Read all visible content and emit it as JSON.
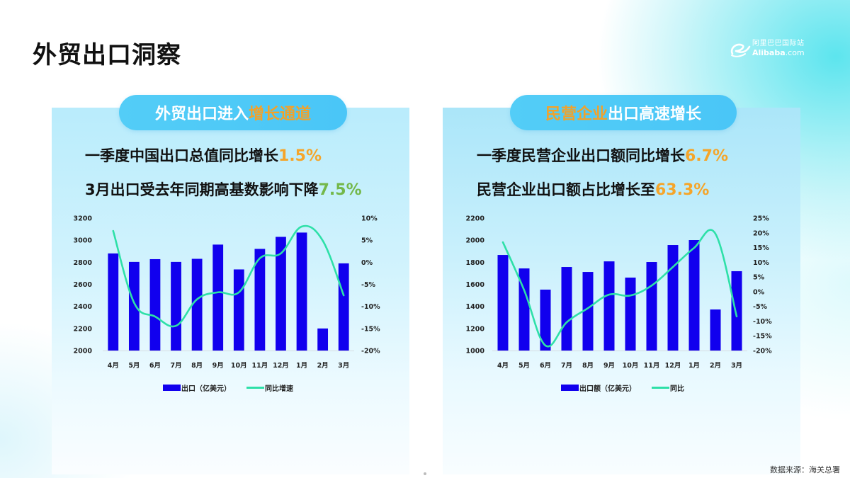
{
  "page": {
    "title": "外贸出口洞察",
    "logo": {
      "cn": "阿里巴巴国际站",
      "en_bold": "Alibaba",
      "en_suffix": ".com"
    },
    "source": "数据来源：海关总署"
  },
  "panels": [
    {
      "pill": {
        "text_plain": "外贸出口进入",
        "text_highlight": "增长通道",
        "highlight_position": "end"
      },
      "stats": [
        {
          "text": "一季度中国出口总值同比增长",
          "value": "1.5%",
          "value_color": "#f5a52a"
        },
        {
          "text": "3月出口受去年同期高基数影响下降",
          "value": "7.5%",
          "value_color": "#74b84a"
        }
      ],
      "legend": {
        "bar": "出口（亿美元）",
        "line": "同比增速"
      }
    },
    {
      "pill": {
        "text_highlight": "民营企业",
        "text_plain": "出口高速增长",
        "highlight_position": "start"
      },
      "stats": [
        {
          "text": "一季度民营企业出口额同比增长",
          "value": "6.7%",
          "value_color": "#f5a52a"
        },
        {
          "text": "民营企业出口额占比增长至",
          "value": "63.3%",
          "value_color": "#f5a52a"
        }
      ],
      "legend": {
        "bar": "出口额（亿美元）",
        "line": "同比"
      }
    }
  ],
  "colors": {
    "bar": "#1100ee",
    "line": "#2ee0a8",
    "pill": "#4ec9f7",
    "highlight": "#f2a22a"
  },
  "chart_data": [
    {
      "type": "bar+line",
      "title": "外贸出口进入增长通道",
      "categories": [
        "4月",
        "5月",
        "6月",
        "7月",
        "8月",
        "9月",
        "10月",
        "11月",
        "12月",
        "1月",
        "2月",
        "3月"
      ],
      "series": [
        {
          "name": "出口（亿美元）",
          "type": "bar",
          "axis": "left",
          "values": [
            2880,
            2803,
            2828,
            2803,
            2831,
            2960,
            2735,
            2921,
            3030,
            3069,
            2200,
            2790
          ]
        },
        {
          "name": "同比增速",
          "type": "line",
          "axis": "right",
          "unit": "%",
          "values": [
            7.1,
            -9.2,
            -12.3,
            -14.4,
            -8.4,
            -6.8,
            -6.8,
            0.9,
            2.0,
            8.1,
            4.9,
            -7.5
          ]
        }
      ],
      "y_left": {
        "min": 2000,
        "max": 3200,
        "ticks": [
          "2000",
          "2200",
          "2400",
          "2600",
          "2800",
          "3000",
          "3200"
        ]
      },
      "y_right": {
        "min": -20,
        "max": 10,
        "ticks": [
          "-20%",
          "-15%",
          "-10%",
          "-5%",
          "0%",
          "5%",
          "10%"
        ]
      },
      "grid": false,
      "legend_position": "bottom"
    },
    {
      "type": "bar+line",
      "title": "民营企业出口高速增长",
      "categories": [
        "4月",
        "5月",
        "6月",
        "7月",
        "8月",
        "9月",
        "10月",
        "11月",
        "12月",
        "1月",
        "2月",
        "3月"
      ],
      "series": [
        {
          "name": "出口额（亿美元）",
          "type": "bar",
          "axis": "left",
          "values": [
            1866,
            1744,
            1552,
            1757,
            1712,
            1808,
            1661,
            1802,
            1956,
            2001,
            1372,
            1719
          ]
        },
        {
          "name": "同比",
          "type": "line",
          "axis": "right",
          "unit": "%",
          "values": [
            16.8,
            0.5,
            -18.3,
            -10.4,
            -5.6,
            -1.0,
            -1.3,
            2.1,
            8.4,
            14.9,
            19.7,
            -8.4
          ]
        }
      ],
      "y_left": {
        "min": 1000,
        "max": 2200,
        "ticks": [
          "1000",
          "1200",
          "1400",
          "1600",
          "1800",
          "2000",
          "2200"
        ]
      },
      "y_right": {
        "min": -20,
        "max": 25,
        "ticks": [
          "-20%",
          "-15%",
          "-10%",
          "-5%",
          "0%",
          "5%",
          "10%",
          "15%",
          "20%",
          "25%"
        ]
      },
      "grid": false,
      "legend_position": "bottom"
    }
  ]
}
